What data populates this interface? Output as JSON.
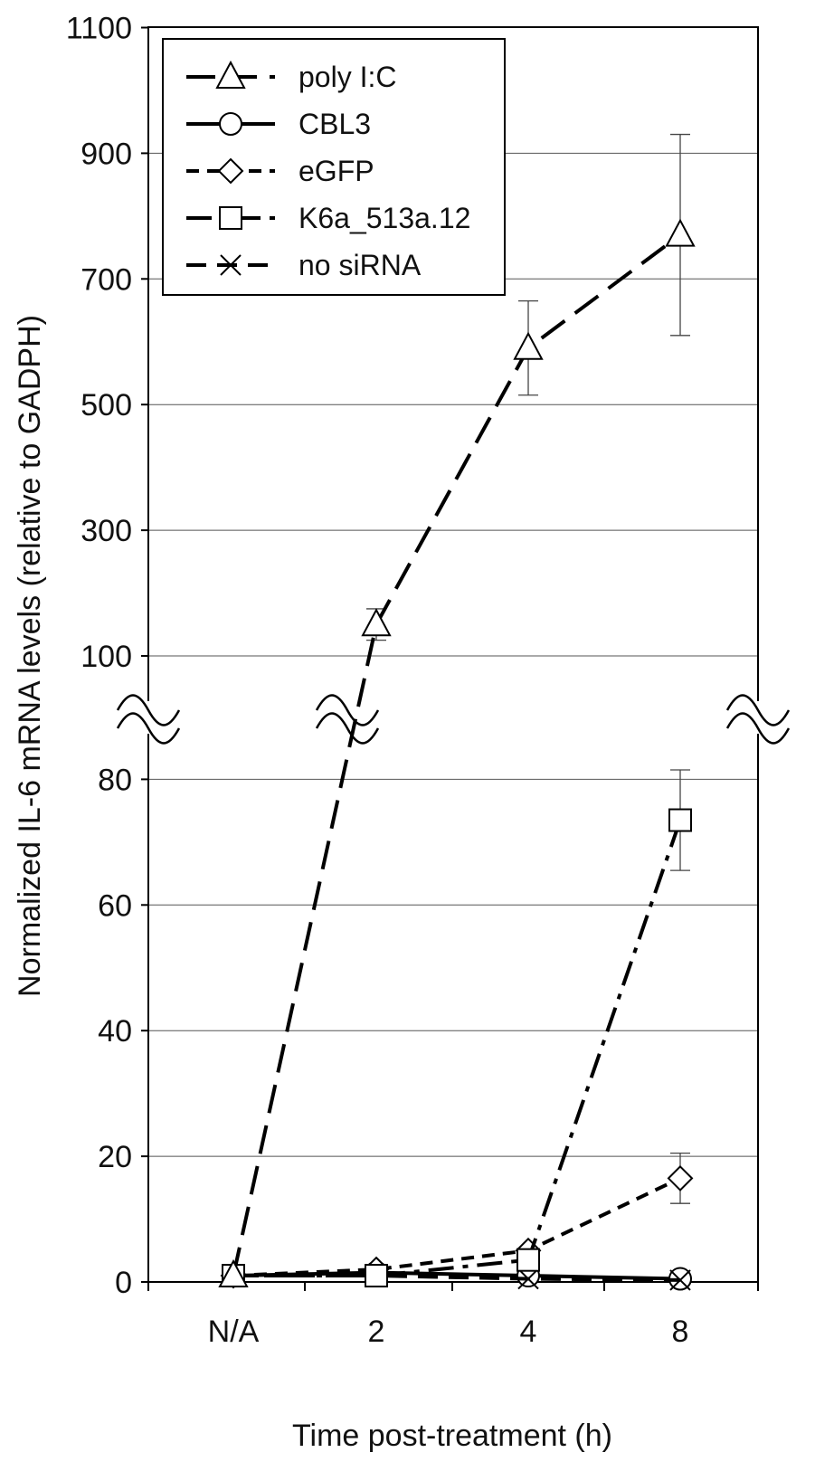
{
  "chart_data": {
    "type": "line",
    "xlabel": "Time post-treatment (h)",
    "ylabel": "Normalized IL-6 mRNA levels (relative to GADPH)",
    "categories": [
      "N/A",
      "2",
      "4",
      "8"
    ],
    "y_ticks_lower": [
      "0",
      "20",
      "40",
      "60",
      "80"
    ],
    "y_ticks_upper": [
      "100",
      "300",
      "500",
      "700",
      "900",
      "1100"
    ],
    "y_lower_range": [
      0,
      90
    ],
    "y_upper_range": [
      100,
      1100
    ],
    "axis_break": "between 90 and 100",
    "grid": true,
    "legend_position": "top-left",
    "series": [
      {
        "name": "poly I:C",
        "marker": "triangle",
        "dash": "long-dash",
        "values": [
          1,
          150,
          590,
          770
        ],
        "errors": [
          null,
          25,
          75,
          160
        ]
      },
      {
        "name": "CBL3",
        "marker": "circle",
        "dash": "solid",
        "values": [
          1,
          1.5,
          1,
          0.5
        ],
        "errors": [
          null,
          null,
          null,
          null
        ]
      },
      {
        "name": "eGFP",
        "marker": "diamond",
        "dash": "short-dash",
        "values": [
          1,
          2,
          5,
          16.5
        ],
        "errors": [
          null,
          null,
          null,
          4
        ]
      },
      {
        "name": "K6a_513a.12",
        "marker": "square",
        "dash": "dash-dot",
        "values": [
          1,
          1,
          3.5,
          73.5
        ],
        "errors": [
          null,
          null,
          null,
          8
        ]
      },
      {
        "name": "no siRNA",
        "marker": "x",
        "dash": "dash",
        "values": [
          1,
          1,
          0.5,
          0.3
        ],
        "errors": [
          null,
          null,
          null,
          null
        ]
      }
    ]
  }
}
